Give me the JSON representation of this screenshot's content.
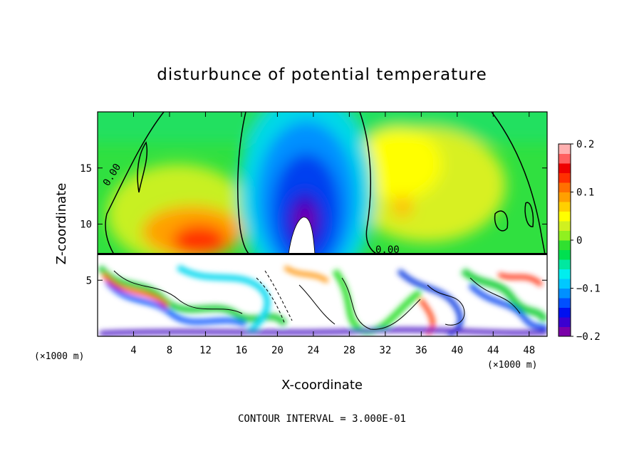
{
  "chart_data": {
    "type": "heatmap",
    "title": "disturbunce of potential temperature",
    "xlabel": "X-coordinate",
    "ylabel": "Z-coordinate",
    "x_unit_label": "(×1000 m)",
    "xlim": [
      0,
      50
    ],
    "ylim": [
      0,
      20
    ],
    "x_ticks": [
      4,
      8,
      12,
      16,
      20,
      24,
      28,
      32,
      36,
      40,
      44,
      48
    ],
    "y_ticks": [
      5,
      10,
      15
    ],
    "colorbar": {
      "range": [
        -0.2,
        0.2
      ],
      "ticks": [
        0.2,
        0.1,
        0,
        -0.1,
        -0.2
      ],
      "tick_labels": [
        "0.2",
        "0.1",
        "0",
        "−0.1",
        "−0.2"
      ],
      "colors": [
        "#7a00a8",
        "#3a00d0",
        "#0010f0",
        "#0050ff",
        "#0090ff",
        "#00c8ff",
        "#00eeee",
        "#00e8a0",
        "#00e050",
        "#30e030",
        "#90f020",
        "#d0f020",
        "#ffff00",
        "#ffd000",
        "#ffa000",
        "#ff7000",
        "#ff3000",
        "#ee0000",
        "#ff6060",
        "#ffb0b0"
      ]
    },
    "contour_labels": [
      "0.00",
      "0.00"
    ],
    "contour_interval_text": "CONTOUR INTERVAL = 3.000E-01"
  }
}
